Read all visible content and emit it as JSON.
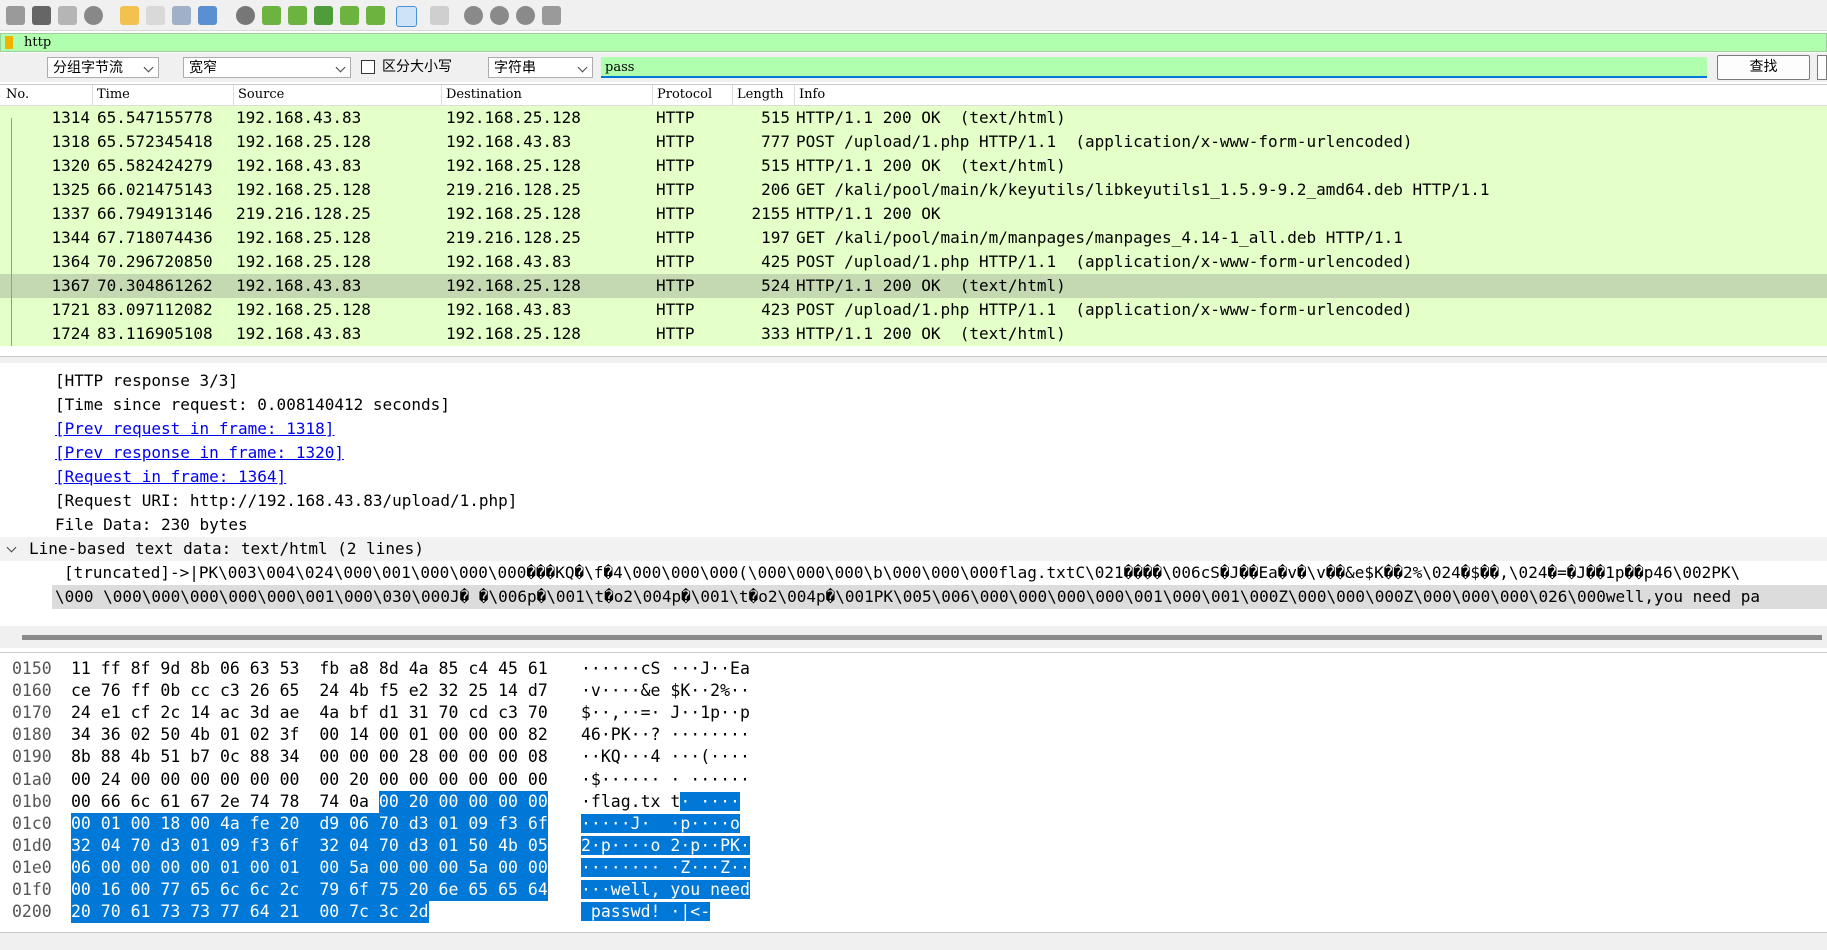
{
  "filter": "http",
  "search": {
    "mode": "分组字节流",
    "charset": "宽窄",
    "case_label": "区分大小写",
    "type": "字符串",
    "text": "pass",
    "button": "查找"
  },
  "packet_list": {
    "columns": [
      "No.",
      "Time",
      "Source",
      "Destination",
      "Protocol",
      "Length",
      "Info"
    ],
    "rows": [
      [
        "1314",
        "65.547155778",
        "192.168.43.83",
        "192.168.25.128",
        "HTTP",
        "515",
        "HTTP/1.1 200 OK  (text/html)"
      ],
      [
        "1318",
        "65.572345418",
        "192.168.25.128",
        "192.168.43.83",
        "HTTP",
        "777",
        "POST /upload/1.php HTTP/1.1  (application/x-www-form-urlencoded)"
      ],
      [
        "1320",
        "65.582424279",
        "192.168.43.83",
        "192.168.25.128",
        "HTTP",
        "515",
        "HTTP/1.1 200 OK  (text/html)"
      ],
      [
        "1325",
        "66.021475143",
        "192.168.25.128",
        "219.216.128.25",
        "HTTP",
        "206",
        "GET /kali/pool/main/k/keyutils/libkeyutils1_1.5.9-9.2_amd64.deb HTTP/1.1"
      ],
      [
        "1337",
        "66.794913146",
        "219.216.128.25",
        "192.168.25.128",
        "HTTP",
        "2155",
        "HTTP/1.1 200 OK"
      ],
      [
        "1344",
        "67.718074436",
        "192.168.25.128",
        "219.216.128.25",
        "HTTP",
        "197",
        "GET /kali/pool/main/m/manpages/manpages_4.14-1_all.deb HTTP/1.1"
      ],
      [
        "1364",
        "70.296720850",
        "192.168.25.128",
        "192.168.43.83",
        "HTTP",
        "425",
        "POST /upload/1.php HTTP/1.1  (application/x-www-form-urlencoded)"
      ],
      [
        "1367",
        "70.304861262",
        "192.168.43.83",
        "192.168.25.128",
        "HTTP",
        "524",
        "HTTP/1.1 200 OK  (text/html)"
      ],
      [
        "1721",
        "83.097112082",
        "192.168.25.128",
        "192.168.43.83",
        "HTTP",
        "423",
        "POST /upload/1.php HTTP/1.1  (application/x-www-form-urlencoded)"
      ],
      [
        "1724",
        "83.116905108",
        "192.168.43.83",
        "192.168.25.128",
        "HTTP",
        "333",
        "HTTP/1.1 200 OK  (text/html)"
      ]
    ],
    "selected": "1367"
  },
  "details": {
    "lines": [
      {
        "text": "[HTTP response 3/3]",
        "link": false
      },
      {
        "text": "[Time since request: 0.008140412 seconds]",
        "link": false
      },
      {
        "text": "[Prev request in frame: 1318]",
        "link": true
      },
      {
        "text": "[Prev response in frame: 1320]",
        "link": true
      },
      {
        "text": "[Request in frame: 1364]",
        "link": true
      },
      {
        "text": "[Request URI: http://192.168.43.83/upload/1.php]",
        "link": false
      },
      {
        "text": "File Data: 230 bytes",
        "link": false
      }
    ],
    "section": "Line-based text data: text/html (2 lines)",
    "data_lines": [
      "[truncated]->|PK\\003\\004\\024\\000\\001\\000\\000\\000���KQ�\\f�4\\000\\000\\000(\\000\\000\\000\\b\\000\\000\\000flag.txtC\\021����\\006cS�J��Ea�v�\\v��&e$K��2%\\024�$��,\\024�=�J��1p��p46\\002PK\\",
      "\\000 \\000\\000\\000\\000\\000\\001\\000\\030\\000J� �\\006p�\\001\\t�o2\\004p�\\001\\t�o2\\004p�\\001PK\\005\\006\\000\\000\\000\\000\\001\\000\\001\\000Z\\000\\000\\000Z\\000\\000\\000\\026\\000well,you need pa"
    ]
  },
  "bytes": {
    "rows": [
      {
        "offset": "0150",
        "hex": [
          "11",
          "ff",
          "8f",
          "9d",
          "8b",
          "06",
          "63",
          "53",
          "fb",
          "a8",
          "8d",
          "4a",
          "85",
          "c4",
          "45",
          "61"
        ],
        "hex_sel": [],
        "ascii": "······cS ···J··Ea",
        "ascii_sel": ""
      },
      {
        "offset": "0160",
        "hex": [
          "ce",
          "76",
          "ff",
          "0b",
          "cc",
          "c3",
          "26",
          "65",
          "24",
          "4b",
          "f5",
          "e2",
          "32",
          "25",
          "14",
          "d7"
        ],
        "hex_sel": [],
        "ascii": "·v····&e $K··2%··",
        "ascii_sel": ""
      },
      {
        "offset": "0170",
        "hex": [
          "24",
          "e1",
          "cf",
          "2c",
          "14",
          "ac",
          "3d",
          "ae",
          "4a",
          "bf",
          "d1",
          "31",
          "70",
          "cd",
          "c3",
          "70"
        ],
        "hex_sel": [],
        "ascii": "$··,··=· J··1p··p",
        "ascii_sel": ""
      },
      {
        "offset": "0180",
        "hex": [
          "34",
          "36",
          "02",
          "50",
          "4b",
          "01",
          "02",
          "3f",
          "00",
          "14",
          "00",
          "01",
          "00",
          "00",
          "00",
          "82"
        ],
        "hex_sel": [],
        "ascii": "46·PK··? ········",
        "ascii_sel": ""
      },
      {
        "offset": "0190",
        "hex": [
          "8b",
          "88",
          "4b",
          "51",
          "b7",
          "0c",
          "88",
          "34",
          "00",
          "00",
          "00",
          "28",
          "00",
          "00",
          "00",
          "08"
        ],
        "hex_sel": [],
        "ascii": "··KQ···4 ···(····",
        "ascii_sel": ""
      },
      {
        "offset": "01a0",
        "hex": [
          "00",
          "24",
          "00",
          "00",
          "00",
          "00",
          "00",
          "00",
          "00",
          "20",
          "00",
          "00",
          "00",
          "00",
          "00",
          "00"
        ],
        "hex_sel": [],
        "ascii": "·$······ · ······",
        "ascii_sel": ""
      },
      {
        "offset": "01b0",
        "hex": [
          "00",
          "66",
          "6c",
          "61",
          "67",
          "2e",
          "74",
          "78",
          "74",
          "0a"
        ],
        "hex_sel": [
          "00",
          "20",
          "00",
          "00",
          "00",
          "00"
        ],
        "ascii": "·flag.tx t",
        "ascii_sel": "· ····"
      },
      {
        "offset": "01c0",
        "hex": [],
        "hex_sel": [
          "00",
          "01",
          "00",
          "18",
          "00",
          "4a",
          "fe",
          "20",
          "d9",
          "06",
          "70",
          "d3",
          "01",
          "09",
          "f3",
          "6f"
        ],
        "ascii": "",
        "ascii_sel": "·····J·  ·p····o"
      },
      {
        "offset": "01d0",
        "hex": [],
        "hex_sel": [
          "32",
          "04",
          "70",
          "d3",
          "01",
          "09",
          "f3",
          "6f",
          "32",
          "04",
          "70",
          "d3",
          "01",
          "50",
          "4b",
          "05"
        ],
        "ascii": "",
        "ascii_sel": "2·p····o 2·p··PK·"
      },
      {
        "offset": "01e0",
        "hex": [],
        "hex_sel": [
          "06",
          "00",
          "00",
          "00",
          "00",
          "01",
          "00",
          "01",
          "00",
          "5a",
          "00",
          "00",
          "00",
          "5a",
          "00",
          "00"
        ],
        "ascii": "",
        "ascii_sel": "········ ·Z···Z··"
      },
      {
        "offset": "01f0",
        "hex": [],
        "hex_sel": [
          "00",
          "16",
          "00",
          "77",
          "65",
          "6c",
          "6c",
          "2c",
          "79",
          "6f",
          "75",
          "20",
          "6e",
          "65",
          "65",
          "64"
        ],
        "ascii": "",
        "ascii_sel": "···well, you need"
      },
      {
        "offset": "0200",
        "hex": [],
        "hex_sel": [
          "20",
          "70",
          "61",
          "73",
          "73",
          "77",
          "64",
          "21",
          "00",
          "7c",
          "3c",
          "2d"
        ],
        "ascii": "",
        "ascii_sel": " passwd! ·|<-"
      }
    ]
  }
}
